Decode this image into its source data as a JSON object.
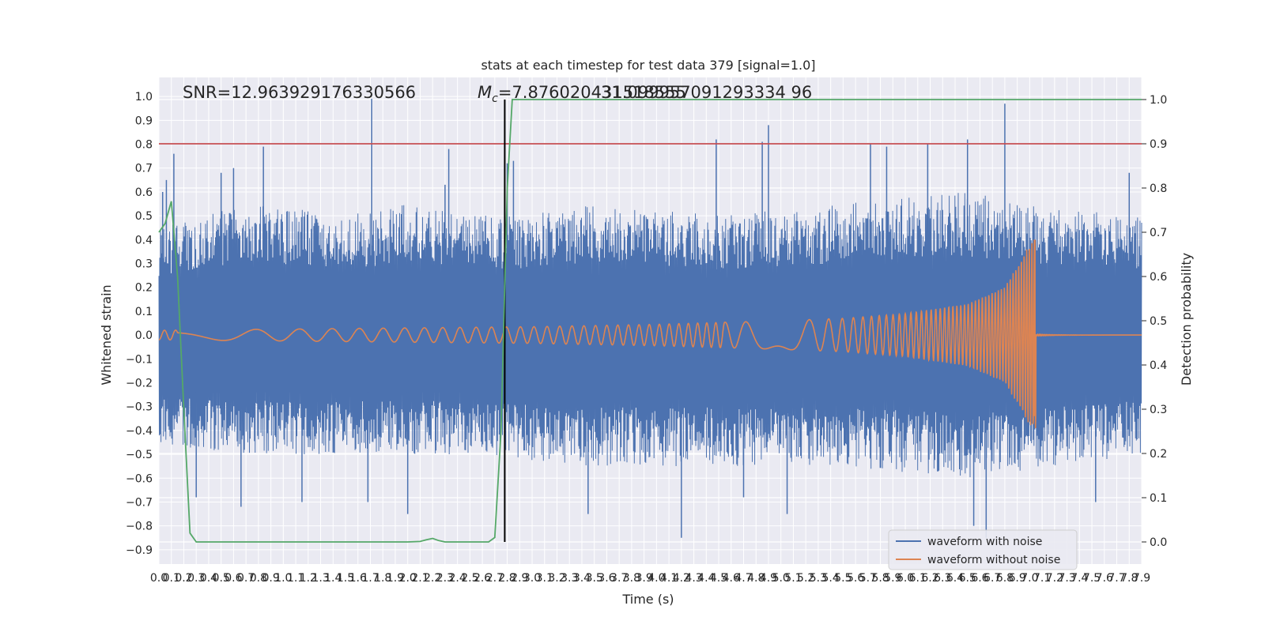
{
  "chart_data": {
    "type": "line",
    "title": "stats at each timestep for test data 379 [signal=1.0]",
    "xlabel": "Time (s)",
    "ylabel": "Whitened strain",
    "ylabel_right": "Detection probability",
    "xlim": [
      0.0,
      7.9
    ],
    "ylim": [
      -0.96,
      1.08
    ],
    "ylim_right": [
      -0.05,
      1.05
    ],
    "x_ticks": [
      0.0,
      0.1,
      0.2,
      0.3,
      0.4,
      0.5,
      0.6,
      0.7,
      0.8,
      0.9,
      1.0,
      1.1,
      1.2,
      1.3,
      1.4,
      1.5,
      1.6,
      1.7,
      1.8,
      1.9,
      2.0,
      2.1,
      2.2,
      2.3,
      2.4,
      2.5,
      2.6,
      2.7,
      2.8,
      2.9,
      3.0,
      3.1,
      3.2,
      3.3,
      3.4,
      3.5,
      3.6,
      3.7,
      3.8,
      3.9,
      4.0,
      4.1,
      4.2,
      4.3,
      4.4,
      4.5,
      4.6,
      4.7,
      4.8,
      4.9,
      5.0,
      5.1,
      5.2,
      5.3,
      5.4,
      5.5,
      5.6,
      5.7,
      5.8,
      5.9,
      6.0,
      6.1,
      6.2,
      6.3,
      6.4,
      6.5,
      6.6,
      6.7,
      6.8,
      6.9,
      7.0,
      7.1,
      7.2,
      7.3,
      7.4,
      7.5,
      7.6,
      7.7,
      7.8,
      7.9
    ],
    "x_tick_labels": [
      "0.0",
      "0.1",
      "0.2",
      "0.3",
      "0.4",
      "0.5",
      "0.6",
      "0.7",
      "0.8",
      "0.9",
      "1.0",
      "1.1",
      "1.2",
      "1.3",
      "1.4",
      "1.5",
      "1.6",
      "1.7",
      "1.8",
      "1.9",
      "2.0",
      "2.1",
      "2.2",
      "2.3",
      "2.4",
      "2.5",
      "2.6",
      "2.7",
      "2.8",
      "2.9",
      "3.0",
      "3.1",
      "3.2",
      "3.3",
      "3.4",
      "3.5",
      "3.6",
      "3.7",
      "3.8",
      "3.9",
      "4.0",
      "4.1",
      "4.2",
      "4.3",
      "4.4",
      "4.5",
      "4.6",
      "4.7",
      "4.8",
      "4.9",
      "5.0",
      "5.1",
      "5.2",
      "5.3",
      "5.4",
      "5.5",
      "5.6",
      "5.7",
      "5.8",
      "5.9",
      "6.0",
      "6.1",
      "6.2",
      "6.3",
      "6.4",
      "6.5",
      "6.6",
      "6.7",
      "6.8",
      "6.9",
      "7.0",
      "7.1",
      "7.2",
      "7.3",
      "7.4",
      "7.5",
      "7.6",
      "7.7",
      "7.8",
      "7.9"
    ],
    "y_ticks": [
      1.0,
      0.9,
      0.8,
      0.7,
      0.6,
      0.5,
      0.4,
      0.3,
      0.2,
      0.1,
      0.0,
      -0.1,
      -0.2,
      -0.3,
      -0.4,
      -0.5,
      -0.6,
      -0.7,
      -0.8,
      -0.9
    ],
    "y_tick_labels": [
      "1.0",
      "0.9",
      "0.8",
      "0.7",
      "0.6",
      "0.5",
      "0.4",
      "0.3",
      "0.2",
      "0.1",
      "0.0",
      "−0.1",
      "−0.2",
      "−0.3",
      "−0.4",
      "−0.5",
      "−0.6",
      "−0.7",
      "−0.8",
      "−0.9"
    ],
    "y_right_ticks": [
      1.0,
      0.9,
      0.8,
      0.7,
      0.6,
      0.5,
      0.4,
      0.3,
      0.2,
      0.1,
      0.0
    ],
    "y_right_tick_labels": [
      "1.0",
      "0.9",
      "0.8",
      "0.7",
      "0.6",
      "0.5",
      "0.4",
      "0.3",
      "0.2",
      "0.1",
      "0.0"
    ],
    "annotations": {
      "snr": "SNR=12.963929176330566",
      "mc_prefix": "M",
      "mc_sub": "c",
      "mc_value": "=7.876020431518555",
      "extra": "31.099957091293334 96"
    },
    "threshold_right": 0.9,
    "event_time": 2.78,
    "noisy_series": {
      "name": "waveform with noise",
      "envelope_upper": [
        [
          0.0,
          0.45
        ],
        [
          0.3,
          0.5
        ],
        [
          0.8,
          0.55
        ],
        [
          1.5,
          0.5
        ],
        [
          2.0,
          0.55
        ],
        [
          2.8,
          0.5
        ],
        [
          3.5,
          0.55
        ],
        [
          4.5,
          0.5
        ],
        [
          5.5,
          0.55
        ],
        [
          6.5,
          0.6
        ],
        [
          7.0,
          0.55
        ],
        [
          7.9,
          0.5
        ]
      ],
      "envelope_lower": [
        [
          0.0,
          -0.45
        ],
        [
          0.5,
          -0.5
        ],
        [
          1.5,
          -0.5
        ],
        [
          2.5,
          -0.5
        ],
        [
          3.5,
          -0.55
        ],
        [
          4.5,
          -0.55
        ],
        [
          5.5,
          -0.55
        ],
        [
          6.5,
          -0.6
        ],
        [
          7.9,
          -0.5
        ]
      ],
      "spikes": [
        [
          0.03,
          0.6
        ],
        [
          0.06,
          0.65
        ],
        [
          0.12,
          0.76
        ],
        [
          0.3,
          -0.68
        ],
        [
          0.5,
          0.68
        ],
        [
          0.6,
          0.7
        ],
        [
          0.66,
          -0.72
        ],
        [
          0.84,
          0.79
        ],
        [
          1.15,
          -0.7
        ],
        [
          1.71,
          0.99
        ],
        [
          1.68,
          -0.7
        ],
        [
          2.0,
          -0.75
        ],
        [
          2.3,
          0.63
        ],
        [
          2.33,
          0.78
        ],
        [
          2.8,
          0.72
        ],
        [
          2.85,
          0.73
        ],
        [
          3.45,
          -0.75
        ],
        [
          4.2,
          -0.85
        ],
        [
          4.48,
          0.82
        ],
        [
          4.85,
          0.81
        ],
        [
          4.9,
          0.88
        ],
        [
          4.7,
          -0.68
        ],
        [
          5.05,
          -0.75
        ],
        [
          5.72,
          0.8
        ],
        [
          5.85,
          0.79
        ],
        [
          6.18,
          0.8
        ],
        [
          6.5,
          0.82
        ],
        [
          6.55,
          -0.8
        ],
        [
          6.65,
          -0.85
        ],
        [
          6.8,
          0.97
        ],
        [
          7.8,
          0.68
        ],
        [
          7.53,
          -0.7
        ]
      ]
    },
    "clean_series": {
      "name": "waveform without noise",
      "envelope": [
        [
          0.0,
          0.02
        ],
        [
          1.0,
          0.025
        ],
        [
          2.0,
          0.03
        ],
        [
          3.0,
          0.035
        ],
        [
          4.0,
          0.045
        ],
        [
          5.0,
          0.06
        ],
        [
          5.5,
          0.07
        ],
        [
          6.0,
          0.09
        ],
        [
          6.5,
          0.13
        ],
        [
          6.8,
          0.2
        ],
        [
          7.0,
          0.38
        ],
        [
          7.05,
          0.4
        ]
      ],
      "merger_time": 7.05,
      "peak_upper": 0.4,
      "peak_lower": -0.34
    },
    "probability_series": {
      "name": "detection probability",
      "points": [
        [
          0.0,
          0.7
        ],
        [
          0.05,
          0.72
        ],
        [
          0.1,
          0.77
        ],
        [
          0.15,
          0.6
        ],
        [
          0.2,
          0.3
        ],
        [
          0.25,
          0.02
        ],
        [
          0.3,
          0.0
        ],
        [
          0.6,
          0.0
        ],
        [
          1.0,
          0.0
        ],
        [
          1.5,
          0.0
        ],
        [
          2.0,
          0.0
        ],
        [
          2.1,
          0.001
        ],
        [
          2.15,
          0.005
        ],
        [
          2.2,
          0.008
        ],
        [
          2.25,
          0.003
        ],
        [
          2.3,
          0.0
        ],
        [
          2.5,
          0.0
        ],
        [
          2.65,
          0.0
        ],
        [
          2.7,
          0.01
        ],
        [
          2.75,
          0.25
        ],
        [
          2.8,
          0.8
        ],
        [
          2.84,
          1.0
        ],
        [
          3.5,
          1.0
        ],
        [
          5.0,
          1.0
        ],
        [
          6.5,
          1.0
        ],
        [
          7.9,
          1.0
        ]
      ]
    },
    "legend": {
      "location": "lower right",
      "entries": [
        "waveform with noise",
        "waveform without noise"
      ]
    },
    "colors": {
      "noisy": "#4c72b0",
      "clean": "#dd8452",
      "probability": "#55a868",
      "threshold": "#c44e52",
      "event_line": "#000000",
      "plot_bg": "#eaeaf2",
      "grid": "#ffffff",
      "text": "#262626"
    }
  }
}
